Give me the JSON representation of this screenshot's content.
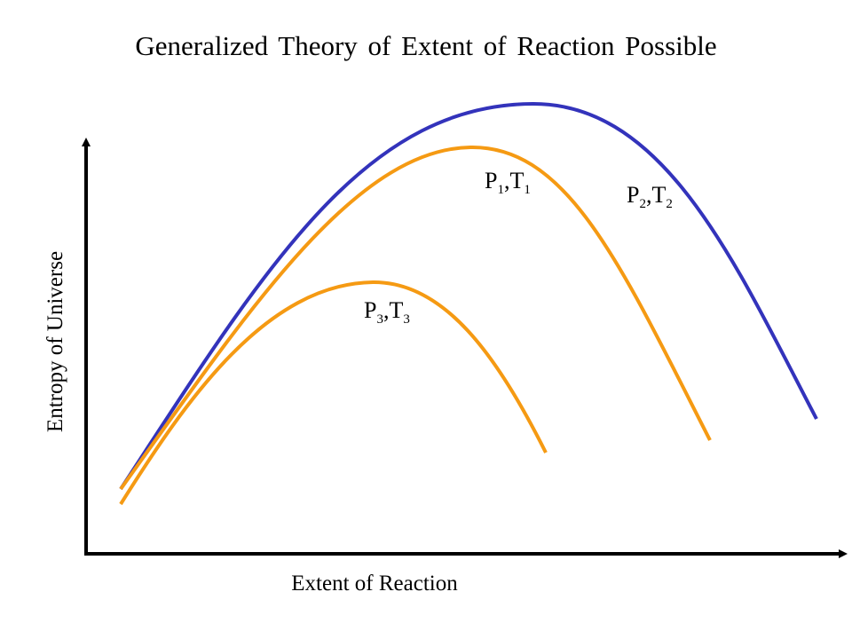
{
  "chart_data": {
    "type": "line",
    "title": "Generalized Theory of Extent of Reaction Possible",
    "xlabel": "Extent of Reaction",
    "ylabel": "Entropy of Universe",
    "grid": false,
    "legend": "none",
    "series": [
      {
        "id": "blue",
        "label_base": [
          "P",
          "T"
        ],
        "label_sub": "2",
        "color": "#3333bb"
      },
      {
        "id": "orange-1",
        "label_base": [
          "P",
          "T"
        ],
        "label_sub": "1",
        "color": "#f59a13"
      },
      {
        "id": "orange-3",
        "label_base": [
          "P",
          "T"
        ],
        "label_sub": "3",
        "color": "#f59a13"
      }
    ]
  }
}
